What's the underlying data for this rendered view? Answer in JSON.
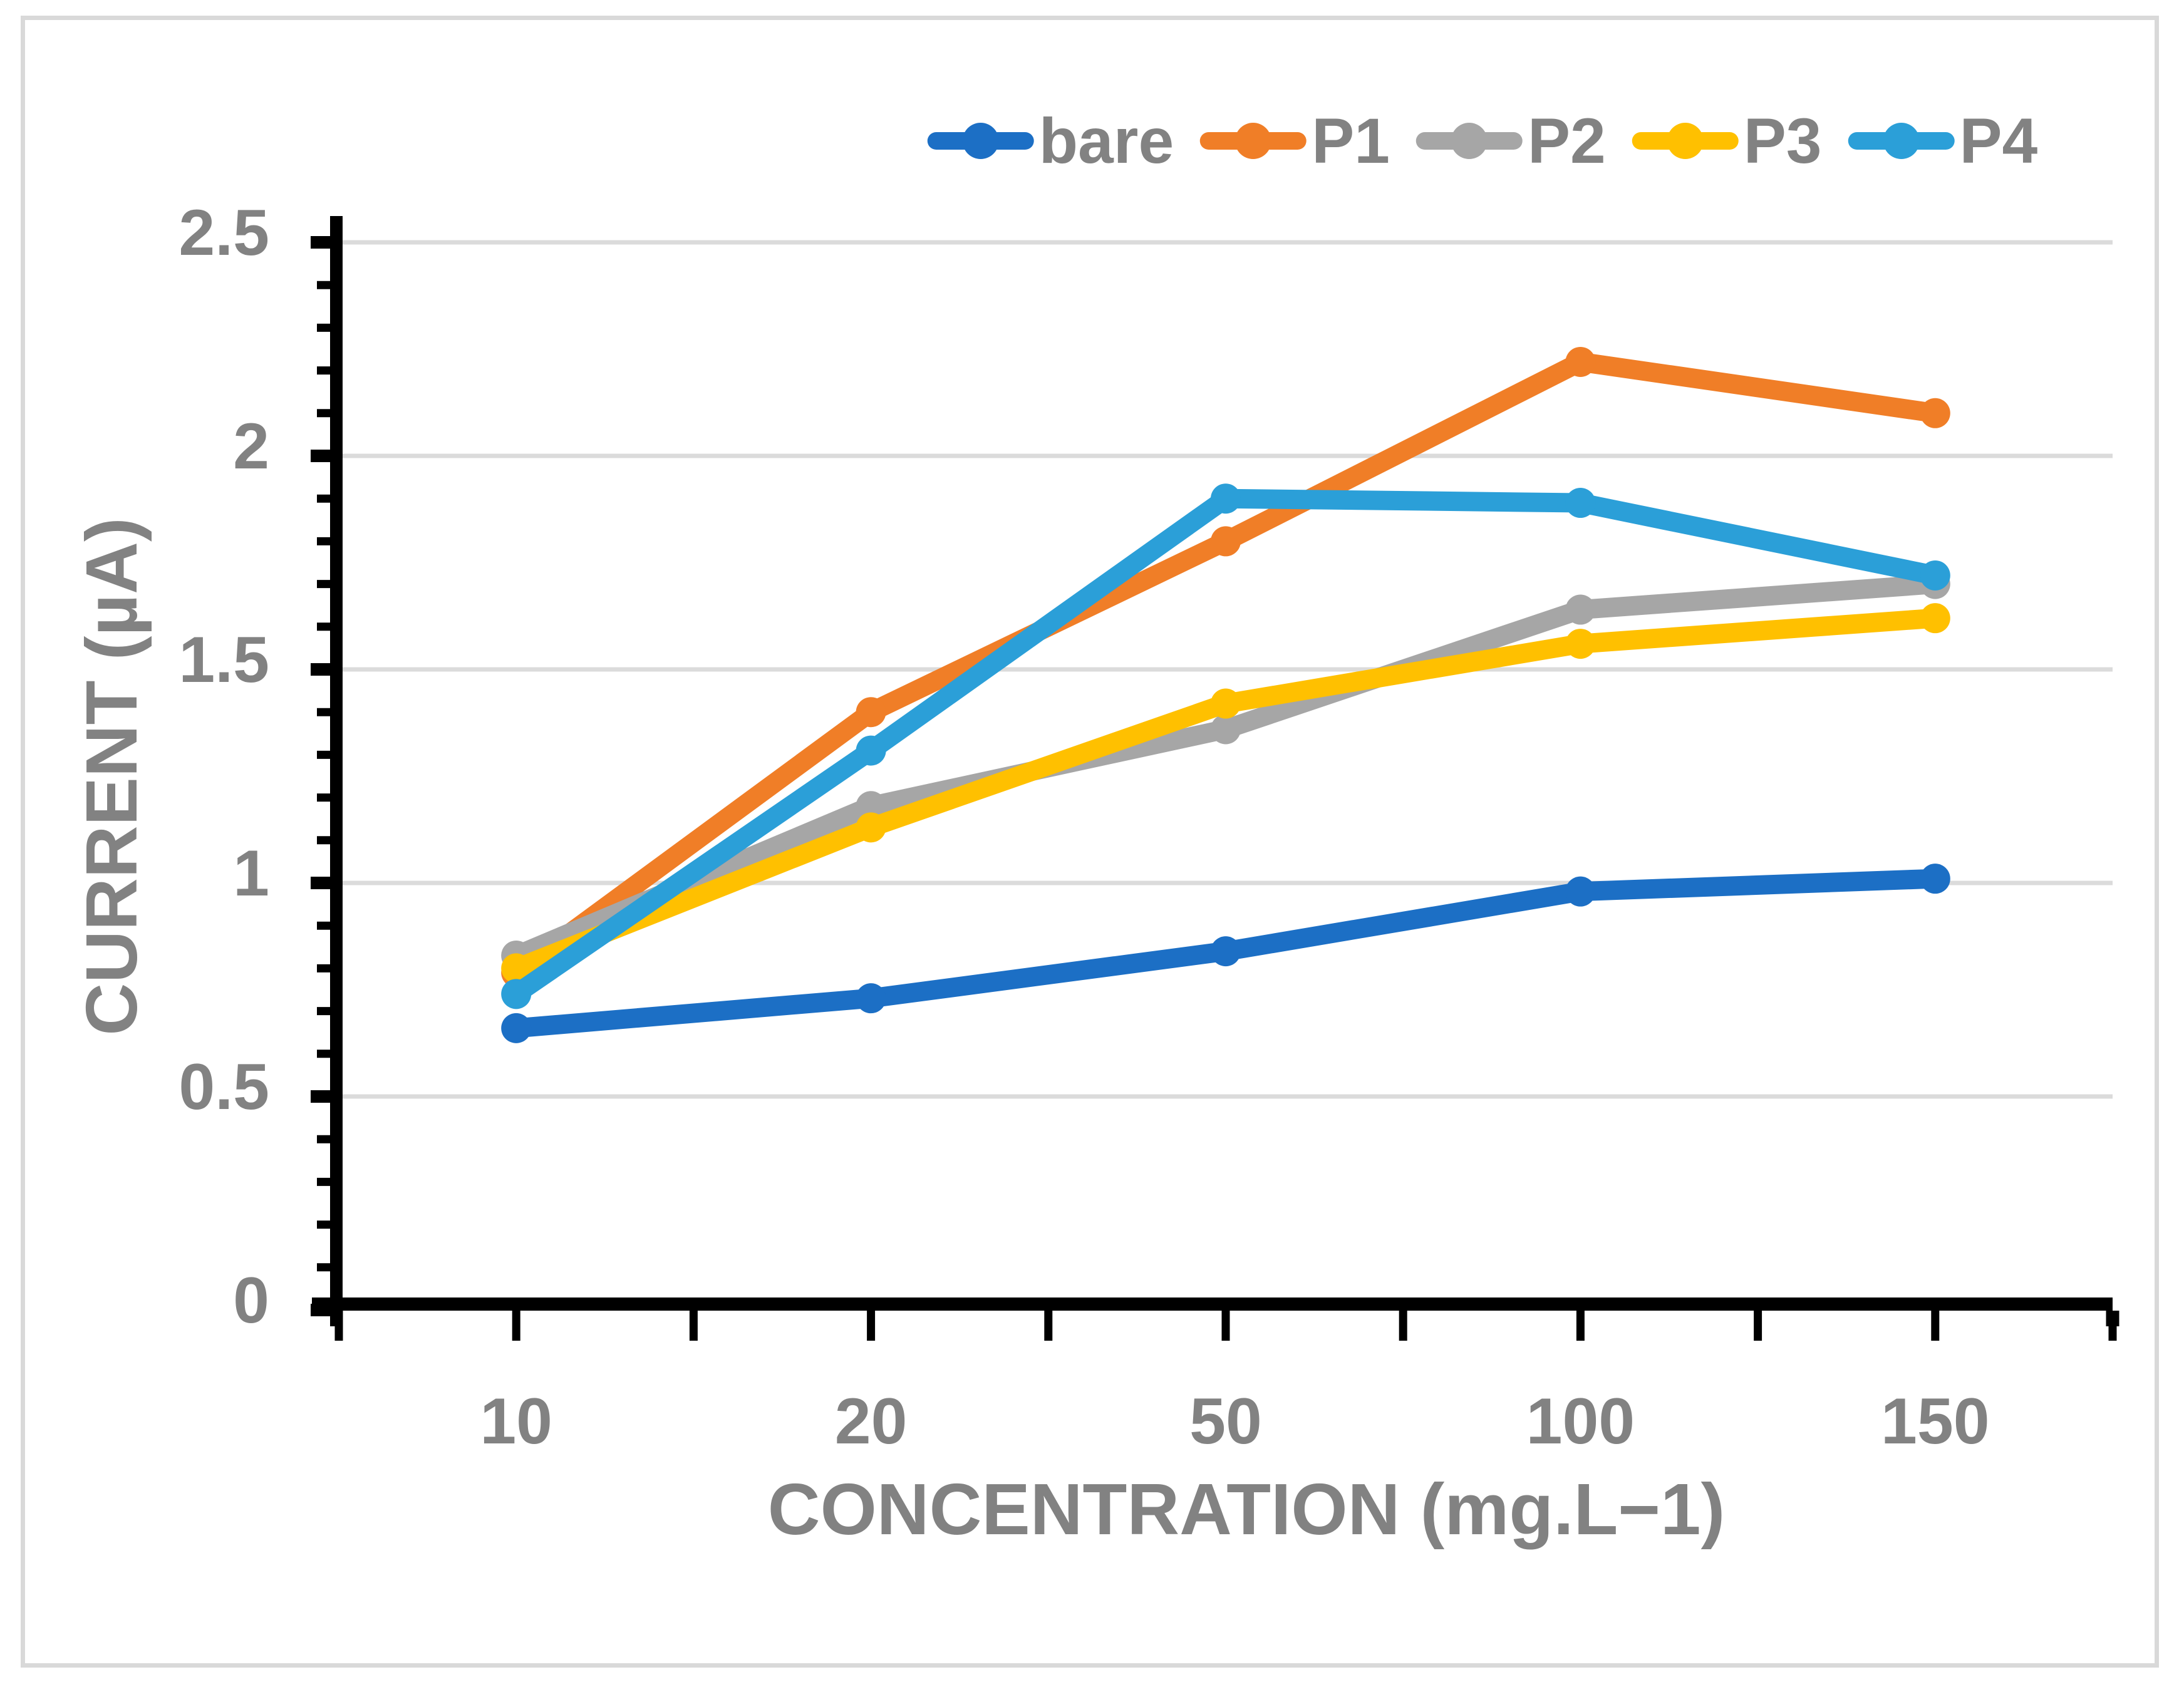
{
  "chart_data": {
    "type": "line",
    "title": "",
    "xlabel": "CONCENTRATION (mg.L−1)",
    "ylabel": "CURRENT (µA)",
    "categories": [
      "10",
      "20",
      "50",
      "100",
      "150"
    ],
    "series": [
      {
        "name": "bare",
        "color": "#1C6FC5",
        "values": [
          0.66,
          0.73,
          0.84,
          0.98,
          1.01
        ]
      },
      {
        "name": "P1",
        "color": "#F07E27",
        "values": [
          0.79,
          1.4,
          1.8,
          2.22,
          2.1
        ]
      },
      {
        "name": "P2",
        "color": "#A6A6A6",
        "values": [
          0.83,
          1.18,
          1.36,
          1.64,
          1.7
        ]
      },
      {
        "name": "P3",
        "color": "#FFC000",
        "values": [
          0.8,
          1.13,
          1.42,
          1.56,
          1.62
        ]
      },
      {
        "name": "P4",
        "color": "#2B9FD8",
        "values": [
          0.74,
          1.31,
          1.9,
          1.89,
          1.72
        ]
      }
    ],
    "ylim": [
      0,
      2.5
    ],
    "y_major_step": 0.5,
    "y_minor_step": 0.1,
    "y_tick_labels": [
      "0",
      "0.5",
      "1",
      "1.5",
      "2",
      "2.5"
    ],
    "grid": true,
    "legend_position": "top",
    "marker": "circle"
  },
  "styles": {
    "text_color": "#828282",
    "gridline_color": "#DBDBDB",
    "axis_color": "#000000",
    "border_color": "#D9D9D9",
    "background": "#FFFFFF"
  }
}
